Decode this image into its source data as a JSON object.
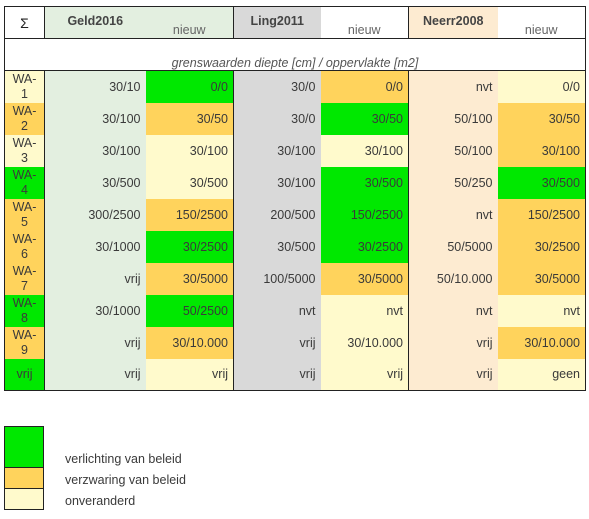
{
  "colors": {
    "green": "#00e800",
    "orange": "#ffd35c",
    "cream": "#fffacc",
    "geld_bg": "#e3efe0",
    "ling_bg": "#d9d9d9",
    "neerr_bg": "#fdebd1"
  },
  "header": {
    "sigma": "Σ",
    "sources": [
      "Geld2016",
      "Ling2011",
      "Neerr2008"
    ],
    "new_label": "nieuw",
    "subtitle": "grenswaarden diepte [cm] / oppervlakte [m2]"
  },
  "rows": [
    {
      "code_a": "WA-",
      "code_b": "1",
      "code_color": "cream",
      "geld": "30/10",
      "geld_new": "0/0",
      "geld_new_color": "green",
      "ling": "30/0",
      "ling_new": "0/0",
      "ling_new_color": "orange",
      "neerr": "nvt",
      "neerr_new": "0/0",
      "neerr_new_color": "cream"
    },
    {
      "code_a": "WA-",
      "code_b": "2",
      "code_color": "orange",
      "geld": "30/100",
      "geld_new": "30/50",
      "geld_new_color": "orange",
      "ling": "30/0",
      "ling_new": "30/50",
      "ling_new_color": "green",
      "neerr": "50/100",
      "neerr_new": "30/50",
      "neerr_new_color": "orange"
    },
    {
      "code_a": "WA-",
      "code_b": "3",
      "code_color": "cream",
      "geld": "30/100",
      "geld_new": "30/100",
      "geld_new_color": "cream",
      "ling": "30/100",
      "ling_new": "30/100",
      "ling_new_color": "cream",
      "neerr": "50/100",
      "neerr_new": "30/100",
      "neerr_new_color": "orange"
    },
    {
      "code_a": "WA-",
      "code_b": "4",
      "code_color": "green",
      "geld": "30/500",
      "geld_new": "30/500",
      "geld_new_color": "cream",
      "ling": "30/100",
      "ling_new": "30/500",
      "ling_new_color": "green",
      "neerr": "50/250",
      "neerr_new": "30/500",
      "neerr_new_color": "green"
    },
    {
      "code_a": "WA-",
      "code_b": "5",
      "code_color": "orange",
      "geld": "300/2500",
      "geld_new": "150/2500",
      "geld_new_color": "orange",
      "ling": "200/500",
      "ling_new": "150/2500",
      "ling_new_color": "green",
      "neerr": "nvt",
      "neerr_new": "150/2500",
      "neerr_new_color": "orange"
    },
    {
      "code_a": "WA-",
      "code_b": "6",
      "code_color": "orange",
      "geld": "30/1000",
      "geld_new": "30/2500",
      "geld_new_color": "green",
      "ling": "30/500",
      "ling_new": "30/2500",
      "ling_new_color": "green",
      "neerr": "50/5000",
      "neerr_new": "30/2500",
      "neerr_new_color": "orange"
    },
    {
      "code_a": "WA-",
      "code_b": "7",
      "code_color": "orange",
      "geld": "vrij",
      "geld_new": "30/5000",
      "geld_new_color": "orange",
      "ling": "100/5000",
      "ling_new": "30/5000",
      "ling_new_color": "orange",
      "neerr": "50/10.000",
      "neerr_new": "30/5000",
      "neerr_new_color": "orange"
    },
    {
      "code_a": "WA-",
      "code_b": "8",
      "code_color": "green",
      "geld": "30/1000",
      "geld_new": "50/2500",
      "geld_new_color": "green",
      "ling": "nvt",
      "ling_new": "nvt",
      "ling_new_color": "cream",
      "neerr": "nvt",
      "neerr_new": "nvt",
      "neerr_new_color": "cream"
    },
    {
      "code_a": "WA-",
      "code_b": "9",
      "code_color": "orange",
      "geld": "vrij",
      "geld_new": "30/10.000",
      "geld_new_color": "orange",
      "ling": "vrij",
      "ling_new": "30/10.000",
      "ling_new_color": "cream",
      "neerr": "vrij",
      "neerr_new": "30/10.000",
      "neerr_new_color": "orange"
    },
    {
      "code_a": "vrij",
      "code_b": "",
      "code_color": "green",
      "geld": "vrij",
      "geld_new": "vrij",
      "geld_new_color": "cream",
      "ling": "vrij",
      "ling_new": "vrij",
      "ling_new_color": "cream",
      "neerr": "vrij",
      "neerr_new": "geen",
      "neerr_new_color": "cream"
    }
  ],
  "legend": [
    {
      "color": "green",
      "label": "verlichting van beleid"
    },
    {
      "color": "orange",
      "label": "verzwaring van beleid"
    },
    {
      "color": "cream",
      "label": "onveranderd"
    }
  ]
}
